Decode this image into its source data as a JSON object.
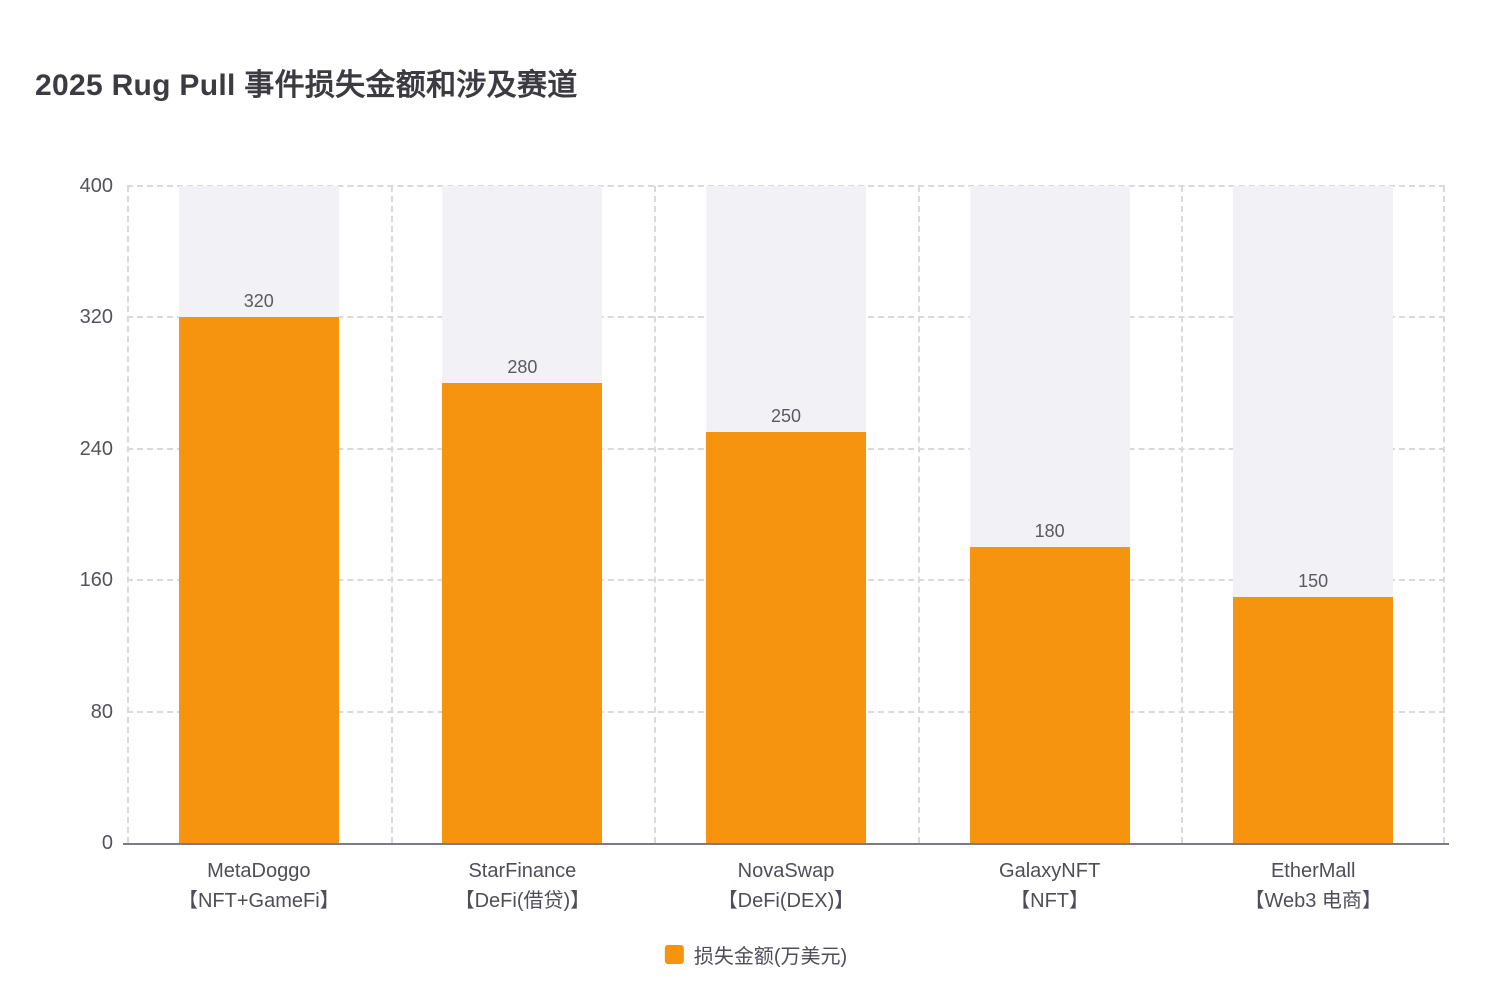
{
  "chart_data": {
    "type": "bar",
    "title": "2025 Rug Pull 事件损失金额和涉及赛道",
    "categories": [
      {
        "name": "MetaDoggo",
        "track": "【NFT+GameFi】"
      },
      {
        "name": "StarFinance",
        "track": "【DeFi(借贷)】"
      },
      {
        "name": "NovaSwap",
        "track": "【DeFi(DEX)】"
      },
      {
        "name": "GalaxyNFT",
        "track": "【NFT】"
      },
      {
        "name": "EtherMall",
        "track": "【Web3 电商】"
      }
    ],
    "series": [
      {
        "name": "损失金额(万美元)",
        "values": [
          320,
          280,
          250,
          180,
          150
        ]
      }
    ],
    "value_labels": [
      "320",
      "280",
      "250",
      "180",
      "150"
    ],
    "xlabel": "",
    "ylabel": "",
    "ylim": [
      0,
      400
    ],
    "yticks": [
      0,
      80,
      160,
      240,
      320,
      400
    ],
    "grid": "dashed-both-axes",
    "legend": {
      "label": "损失金额(万美元)",
      "position": "bottom-center"
    },
    "colors": {
      "bar": "#f6930f",
      "background_band": "#f1f1f6",
      "gridline": "#d9d9de",
      "axis_line": "#7b7b86",
      "title_text": "#3b3b41",
      "label_text": "#4e4e57"
    }
  }
}
